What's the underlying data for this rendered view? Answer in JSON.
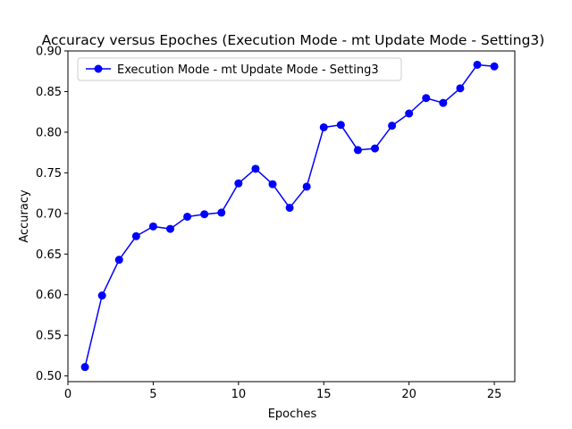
{
  "chart_data": {
    "type": "line",
    "title": "Accuracy versus Epoches (Execution Mode - mt Update Mode - Setting3)",
    "xlabel": "Epoches",
    "ylabel": "Accuracy",
    "xlim": [
      0,
      26.2
    ],
    "ylim": [
      0.493,
      0.9
    ],
    "xticks": [
      0,
      5,
      10,
      15,
      20,
      25
    ],
    "yticks": [
      0.5,
      0.55,
      0.6,
      0.65,
      0.7,
      0.75,
      0.8,
      0.85,
      0.9
    ],
    "xtick_labels": [
      "0",
      "5",
      "10",
      "15",
      "20",
      "25"
    ],
    "ytick_labels": [
      "0.50",
      "0.55",
      "0.60",
      "0.65",
      "0.70",
      "0.75",
      "0.80",
      "0.85",
      "0.90"
    ],
    "legend_position": "top-left",
    "grid": false,
    "series": [
      {
        "name": "Execution Mode - mt Update Mode - Setting3",
        "color": "#0000ff",
        "marker": "circle",
        "x": [
          1,
          2,
          3,
          4,
          5,
          6,
          7,
          8,
          9,
          10,
          11,
          12,
          13,
          14,
          15,
          16,
          17,
          18,
          19,
          20,
          21,
          22,
          23,
          24,
          25
        ],
        "y": [
          0.511,
          0.599,
          0.643,
          0.672,
          0.684,
          0.681,
          0.696,
          0.699,
          0.701,
          0.737,
          0.755,
          0.736,
          0.707,
          0.733,
          0.806,
          0.809,
          0.778,
          0.78,
          0.808,
          0.823,
          0.842,
          0.836,
          0.854,
          0.883,
          0.881
        ]
      }
    ]
  }
}
